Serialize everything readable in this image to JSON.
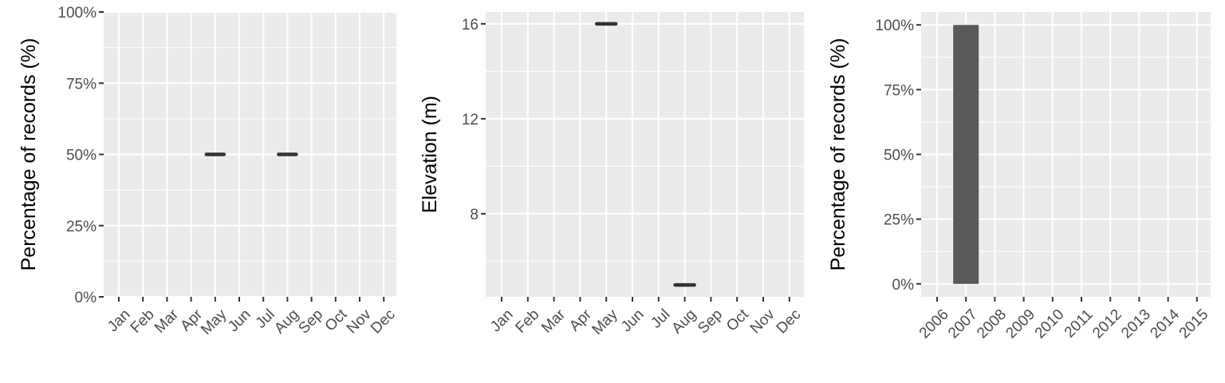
{
  "colors": {
    "panel_background": "#ebebeb",
    "grid_major": "#ffffff",
    "tick_mark": "#333333",
    "mark": "#333333",
    "bar_fill": "#595959"
  },
  "chart_data": [
    {
      "type": "scatter",
      "title": "",
      "xlabel": "",
      "ylabel": "Percentage of records (%)",
      "categories": [
        "Jan",
        "Feb",
        "Mar",
        "Apr",
        "May",
        "Jun",
        "Jul",
        "Aug",
        "Sep",
        "Oct",
        "Nov",
        "Dec"
      ],
      "points": [
        {
          "x": "May",
          "y": 50
        },
        {
          "x": "Aug",
          "y": 50
        }
      ],
      "ylim": [
        0,
        100
      ],
      "yticks": [
        0,
        25,
        50,
        75,
        100
      ],
      "ytick_labels": [
        "0%",
        "25%",
        "50%",
        "75%",
        "100%"
      ],
      "grid": true,
      "legend": "none"
    },
    {
      "type": "scatter",
      "title": "",
      "xlabel": "",
      "ylabel": "Elevation (m)",
      "categories": [
        "Jan",
        "Feb",
        "Mar",
        "Apr",
        "May",
        "Jun",
        "Jul",
        "Aug",
        "Sep",
        "Oct",
        "Nov",
        "Dec"
      ],
      "points": [
        {
          "x": "May",
          "y": 16
        },
        {
          "x": "Aug",
          "y": 5
        }
      ],
      "ylim": [
        4.5,
        16.5
      ],
      "yticks": [
        8,
        12,
        16
      ],
      "ytick_labels": [
        "8",
        "12",
        "16"
      ],
      "grid": true,
      "legend": "none"
    },
    {
      "type": "bar",
      "title": "",
      "xlabel": "",
      "ylabel": "Percentage of records (%)",
      "categories": [
        "2006",
        "2007",
        "2008",
        "2009",
        "2010",
        "2011",
        "2012",
        "2013",
        "2014",
        "2015"
      ],
      "values": [
        0,
        100,
        0,
        0,
        0,
        0,
        0,
        0,
        0,
        0
      ],
      "ylim": [
        -5,
        105
      ],
      "yticks": [
        0,
        25,
        50,
        75,
        100
      ],
      "ytick_labels": [
        "0%",
        "25%",
        "50%",
        "75%",
        "100%"
      ],
      "grid": true,
      "legend": "none"
    }
  ]
}
